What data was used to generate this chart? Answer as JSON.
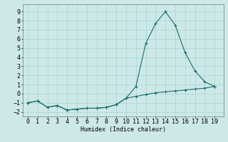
{
  "x": [
    0,
    1,
    2,
    3,
    4,
    5,
    6,
    7,
    8,
    9,
    10,
    11,
    12,
    13,
    14,
    15,
    16,
    17,
    18,
    19
  ],
  "y_upper": [
    -1.0,
    -0.8,
    -1.5,
    -1.3,
    -1.8,
    -1.7,
    -1.6,
    -1.6,
    -1.5,
    -1.2,
    -0.5,
    0.8,
    5.5,
    7.7,
    9.0,
    7.5,
    4.5,
    2.5,
    1.3,
    0.8
  ],
  "y_lower": [
    -1.0,
    -0.8,
    -1.5,
    -1.3,
    -1.8,
    -1.7,
    -1.6,
    -1.6,
    -1.5,
    -1.2,
    -0.5,
    -0.3,
    -0.1,
    0.1,
    0.2,
    0.3,
    0.4,
    0.5,
    0.6,
    0.8
  ],
  "line_color": "#1a6b6b",
  "marker": "+",
  "markersize": 3,
  "linewidth": 0.8,
  "bg_color": "#cce9e7",
  "grid_color": "#aad4d2",
  "xlabel": "Humidex (Indice chaleur)",
  "xlabel_fontsize": 6,
  "tick_fontsize": 6,
  "xlim": [
    -0.5,
    19.9
  ],
  "ylim": [
    -2.5,
    9.8
  ],
  "yticks": [
    -2,
    -1,
    0,
    1,
    2,
    3,
    4,
    5,
    6,
    7,
    8,
    9
  ],
  "xticks": [
    0,
    1,
    2,
    3,
    4,
    5,
    6,
    7,
    8,
    9,
    10,
    11,
    12,
    13,
    14,
    15,
    16,
    17,
    18,
    19
  ]
}
